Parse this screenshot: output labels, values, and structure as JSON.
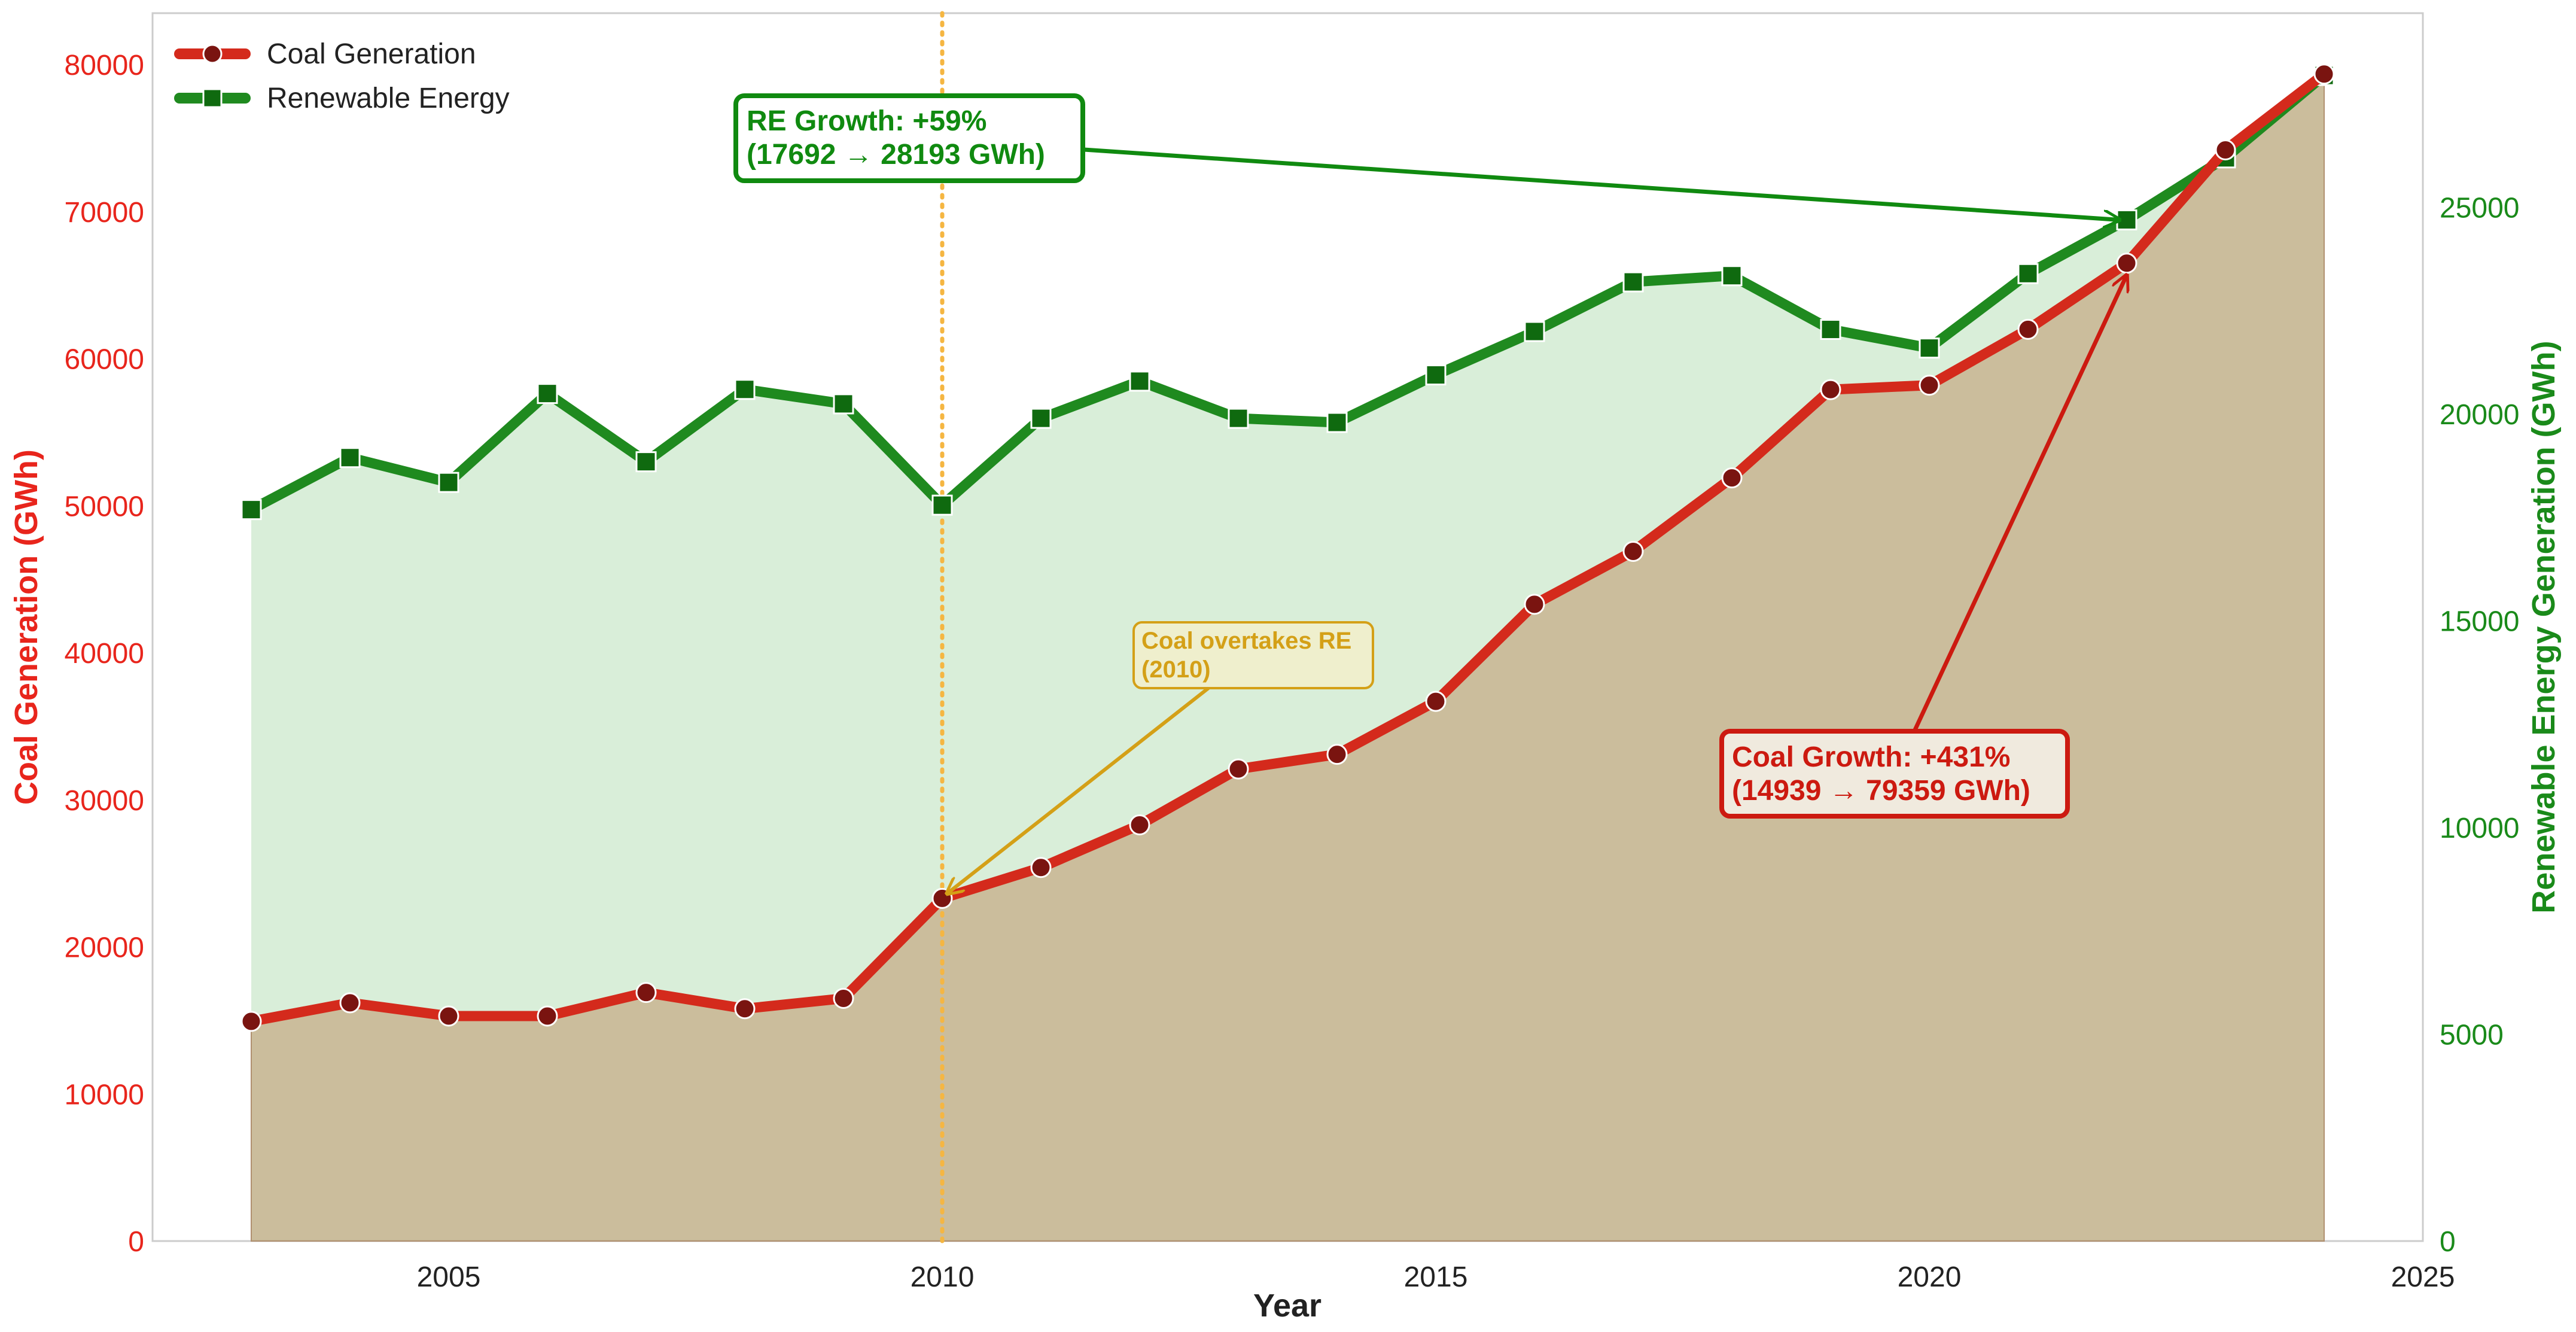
{
  "chart_data": {
    "type": "line",
    "title": "",
    "xlabel": "Year",
    "x_ticks": [
      2005,
      2010,
      2015,
      2020,
      2025
    ],
    "xlim": [
      2002,
      2025
    ],
    "grid": false,
    "legend_position": "top-left",
    "left_axis": {
      "label": "Coal Generation (GWh)",
      "ylim": [
        0,
        83500
      ],
      "ticks": [
        0,
        10000,
        20000,
        30000,
        40000,
        50000,
        60000,
        70000,
        80000
      ],
      "color": "#e8251c"
    },
    "right_axis": {
      "label": "Renewable Energy Generation (GWh)",
      "ylim": [
        0,
        29700
      ],
      "ticks": [
        0,
        5000,
        10000,
        15000,
        20000,
        25000
      ],
      "color": "#1a8a1a"
    },
    "x": [
      2003,
      2004,
      2005,
      2006,
      2007,
      2008,
      2009,
      2010,
      2011,
      2012,
      2013,
      2014,
      2015,
      2016,
      2017,
      2018,
      2019,
      2020,
      2021,
      2022,
      2023,
      2024
    ],
    "series": [
      {
        "name": "Coal Generation",
        "axis": "left",
        "marker": "circle",
        "color": "#d42a1c",
        "marker_color": "#7a1410",
        "values": [
          14939,
          16200,
          15300,
          15300,
          16900,
          15800,
          16500,
          23300,
          25400,
          28300,
          32100,
          33100,
          36700,
          43300,
          46900,
          51900,
          57900,
          58200,
          62000,
          66500,
          74200,
          79359
        ]
      },
      {
        "name": "Renewable Energy",
        "axis": "right",
        "marker": "square",
        "color": "#1f8a1f",
        "marker_color": "#0f6a0f",
        "values": [
          17692,
          18950,
          18350,
          20500,
          18850,
          20600,
          20250,
          17800,
          19900,
          20800,
          19900,
          19800,
          20950,
          22000,
          23200,
          23350,
          22050,
          21600,
          23400,
          24700,
          26200,
          28193
        ]
      }
    ],
    "vline": {
      "x": 2010,
      "color": "#f5b642"
    },
    "annotations": [
      {
        "id": "re_growth",
        "lines": [
          "RE Growth: +59%",
          "(17692 → 28193 GWh)"
        ],
        "color": "#108a10",
        "target": {
          "x": 2022,
          "series": "Renewable Energy"
        }
      },
      {
        "id": "coal_overtakes",
        "lines": [
          "Coal overtakes RE",
          "(2010)"
        ],
        "color": "#d4a017",
        "target": {
          "x": 2010,
          "series": "Coal Generation"
        }
      },
      {
        "id": "coal_growth",
        "lines": [
          "Coal Growth: +431%",
          "(14939 → 79359 GWh)"
        ],
        "color": "#cc1a10",
        "target": {
          "x": 2022,
          "series": "Coal Generation"
        }
      }
    ]
  }
}
